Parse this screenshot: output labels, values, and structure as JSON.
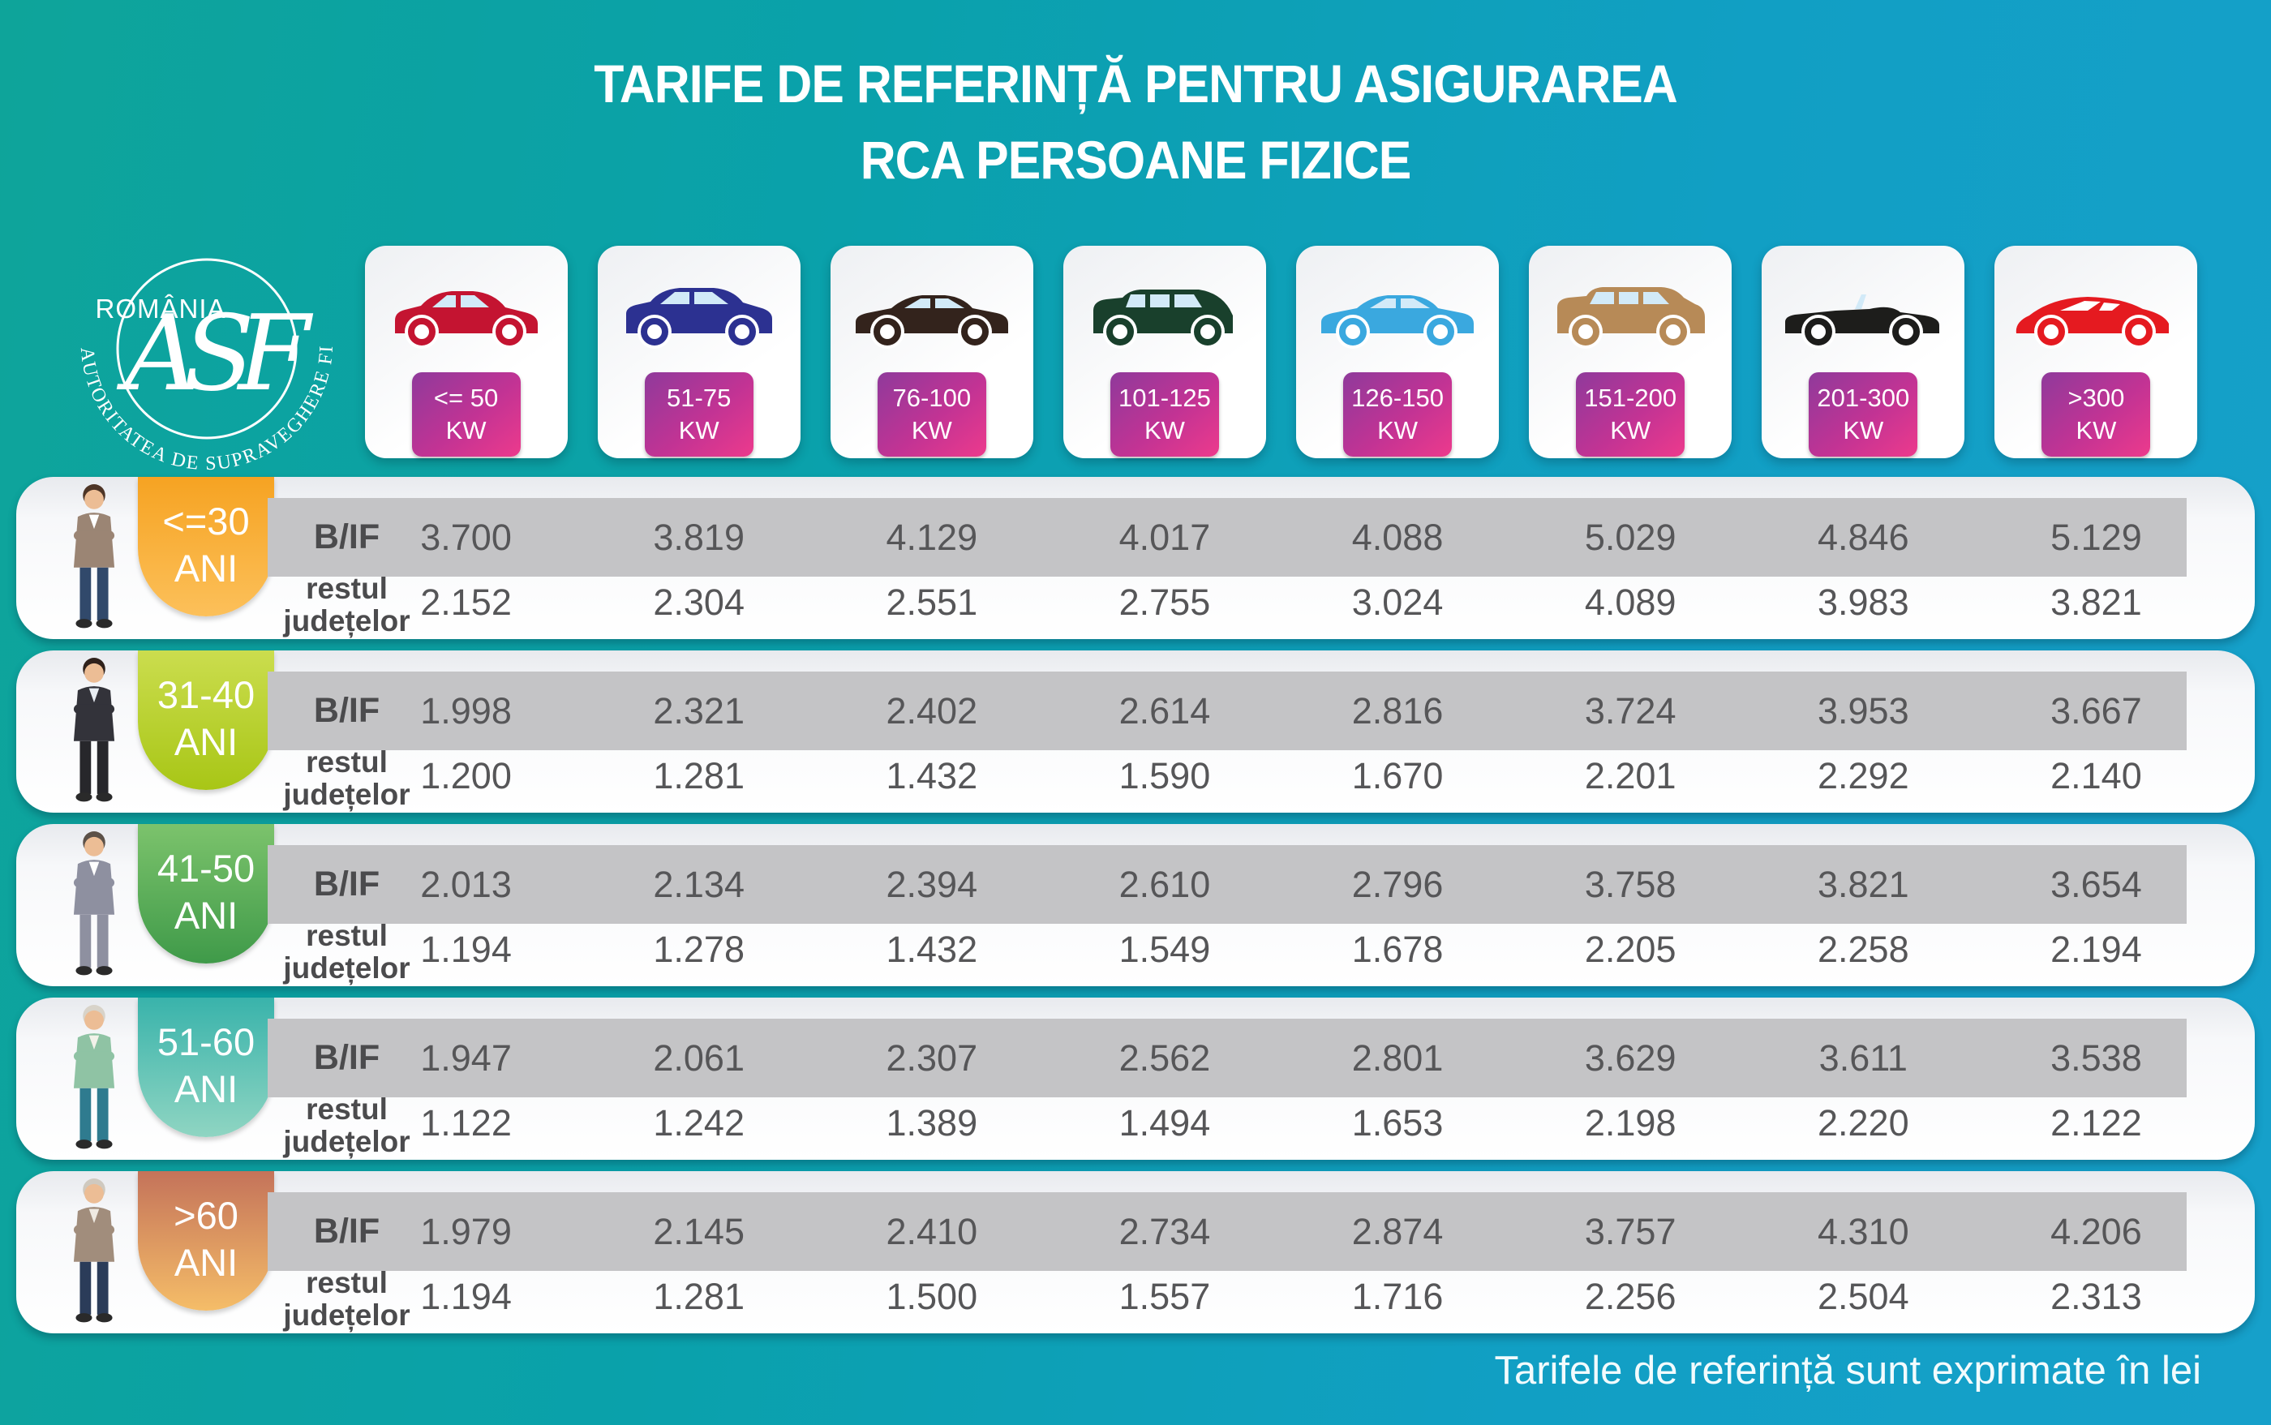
{
  "title": {
    "line1": "TARIFE DE REFERINȚĂ PENTRU ASIGURAREA",
    "line2": "RCA PERSOANE FIZICE"
  },
  "logo": {
    "country": "ROMÂNIA",
    "monogram": "ASF",
    "ring_text": "AUTORITATEA DE SUPRAVEGHERE FINANCIARĂ"
  },
  "footer": {
    "note": "Tarifele de referință sunt exprimate în lei"
  },
  "row_labels": {
    "bif": "B/IF",
    "rest_line1": "restul",
    "rest_line2": "județelor"
  },
  "colors": {
    "background_teal": "#0ea49a",
    "background_blue": "#16a0ca",
    "kw_badge_purple": "#8f3a9b",
    "kw_badge_pink": "#ed3a8c",
    "bif_strip_gray": "#c4c4c6",
    "value_text": "#565658"
  },
  "power_categories": [
    {
      "kw1": "<= 50",
      "kw2": "KW",
      "car_type": "hatchback",
      "car_color": "#c41431"
    },
    {
      "kw1": "51-75",
      "kw2": "KW",
      "car_type": "suv",
      "car_color": "#2c3191"
    },
    {
      "kw1": "76-100",
      "kw2": "KW",
      "car_type": "sedan",
      "car_color": "#33231c"
    },
    {
      "kw1": "101-125",
      "kw2": "KW",
      "car_type": "minivan",
      "car_color": "#19402c"
    },
    {
      "kw1": "126-150",
      "kw2": "KW",
      "car_type": "sedan",
      "car_color": "#3aa8df"
    },
    {
      "kw1": "151-200",
      "kw2": "KW",
      "car_type": "bigsuv",
      "car_color": "#b78a57"
    },
    {
      "kw1": "201-300",
      "kw2": "KW",
      "car_type": "convertible",
      "car_color": "#1d1d1b"
    },
    {
      "kw1": ">300",
      "kw2": "KW",
      "car_type": "sports",
      "car_color": "#e51a20"
    }
  ],
  "age_groups": [
    {
      "age1": "<=30",
      "age2": "ANI",
      "badge_top": "#f6a322",
      "badge_bottom": "#fcc05a",
      "person": {
        "hair": "#4e3526",
        "jacket": "#9b8574",
        "shirt": "#ffffff",
        "pants": "#31496b"
      },
      "bif": [
        "3.700",
        "3.819",
        "4.129",
        "4.017",
        "4.088",
        "5.029",
        "4.846",
        "5.129"
      ],
      "rest": [
        "2.152",
        "2.304",
        "2.551",
        "2.755",
        "3.024",
        "4.089",
        "3.983",
        "3.821"
      ]
    },
    {
      "age1": "31-40",
      "age2": "ANI",
      "badge_top": "#cbdd4e",
      "badge_bottom": "#a8c616",
      "person": {
        "hair": "#2f211b",
        "jacket": "#33333a",
        "shirt": "#e8edf2",
        "pants": "#27272b"
      },
      "bif": [
        "1.998",
        "2.321",
        "2.402",
        "2.614",
        "2.816",
        "3.724",
        "3.953",
        "3.667"
      ],
      "rest": [
        "1.200",
        "1.281",
        "1.432",
        "1.590",
        "1.670",
        "2.201",
        "2.292",
        "2.140"
      ]
    },
    {
      "age1": "41-50",
      "age2": "ANI",
      "badge_top": "#7cc36c",
      "badge_bottom": "#3f9a49",
      "person": {
        "hair": "#5c5148",
        "jacket": "#8e90a0",
        "shirt": "#ffffff",
        "pants": "#8e90a0"
      },
      "bif": [
        "2.013",
        "2.134",
        "2.394",
        "2.610",
        "2.796",
        "3.758",
        "3.821",
        "3.654"
      ],
      "rest": [
        "1.194",
        "1.278",
        "1.432",
        "1.549",
        "1.678",
        "2.205",
        "2.258",
        "2.194"
      ]
    },
    {
      "age1": "51-60",
      "age2": "ANI",
      "badge_top": "#39b3ab",
      "badge_bottom": "#8fd5c2",
      "person": {
        "hair": "#d8d3c9",
        "jacket": "#8fc3a4",
        "shirt": "#f3f2ea",
        "pants": "#2f7b8f"
      },
      "bif": [
        "1.947",
        "2.061",
        "2.307",
        "2.562",
        "2.801",
        "3.629",
        "3.611",
        "3.538"
      ],
      "rest": [
        "1.122",
        "1.242",
        "1.389",
        "1.494",
        "1.653",
        "2.198",
        "2.220",
        "2.122"
      ]
    },
    {
      "age1": ">60",
      "age2": "ANI",
      "badge_top": "#c4735a",
      "badge_bottom": "#f5bd68",
      "person": {
        "hair": "#cfc9bf",
        "jacket": "#a18d7c",
        "shirt": "#efeae2",
        "pants": "#2b3c59"
      },
      "bif": [
        "1.979",
        "2.145",
        "2.410",
        "2.734",
        "2.874",
        "3.757",
        "4.310",
        "4.206"
      ],
      "rest": [
        "1.194",
        "1.281",
        "1.500",
        "1.557",
        "1.716",
        "2.256",
        "2.504",
        "2.313"
      ]
    }
  ],
  "chart_data": {
    "type": "table",
    "title": "TARIFE DE REFERINȚĂ PENTRU ASIGURAREA RCA PERSOANE FIZICE",
    "unit_note": "Tarifele de referință sunt exprimate în lei",
    "columns_kw": [
      "<= 50 KW",
      "51-75 KW",
      "76-100 KW",
      "101-125 KW",
      "126-150 KW",
      "151-200 KW",
      "201-300 KW",
      ">300 KW"
    ],
    "rows": [
      {
        "age": "<=30 ANI",
        "region": "B/IF",
        "values": [
          3700,
          3819,
          4129,
          4017,
          4088,
          5029,
          4846,
          5129
        ]
      },
      {
        "age": "<=30 ANI",
        "region": "restul județelor",
        "values": [
          2152,
          2304,
          2551,
          2755,
          3024,
          4089,
          3983,
          3821
        ]
      },
      {
        "age": "31-40 ANI",
        "region": "B/IF",
        "values": [
          1998,
          2321,
          2402,
          2614,
          2816,
          3724,
          3953,
          3667
        ]
      },
      {
        "age": "31-40 ANI",
        "region": "restul județelor",
        "values": [
          1200,
          1281,
          1432,
          1590,
          1670,
          2201,
          2292,
          2140
        ]
      },
      {
        "age": "41-50 ANI",
        "region": "B/IF",
        "values": [
          2013,
          2134,
          2394,
          2610,
          2796,
          3758,
          3821,
          3654
        ]
      },
      {
        "age": "41-50 ANI",
        "region": "restul județelor",
        "values": [
          1194,
          1278,
          1432,
          1549,
          1678,
          2205,
          2258,
          2194
        ]
      },
      {
        "age": "51-60 ANI",
        "region": "B/IF",
        "values": [
          1947,
          2061,
          2307,
          2562,
          2801,
          3629,
          3611,
          3538
        ]
      },
      {
        "age": "51-60 ANI",
        "region": "restul județelor",
        "values": [
          1122,
          1242,
          1389,
          1494,
          1653,
          2198,
          2220,
          2122
        ]
      },
      {
        "age": ">60 ANI",
        "region": "B/IF",
        "values": [
          1979,
          2145,
          2410,
          2734,
          2874,
          3757,
          4310,
          4206
        ]
      },
      {
        "age": ">60 ANI",
        "region": "restul județelor",
        "values": [
          1194,
          1281,
          1500,
          1557,
          1716,
          2256,
          2504,
          2313
        ]
      }
    ]
  }
}
